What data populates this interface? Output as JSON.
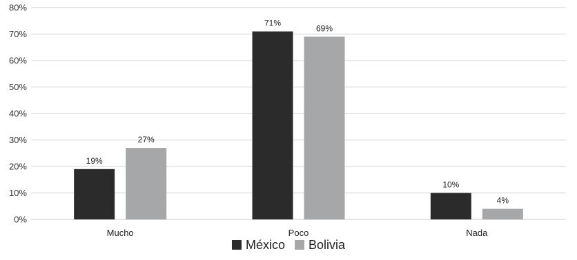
{
  "chart_data": {
    "type": "bar",
    "title": "",
    "xlabel": "",
    "ylabel": "",
    "categories": [
      "Mucho",
      "Poco",
      "Nada"
    ],
    "series": [
      {
        "name": "México",
        "values": [
          19,
          71,
          10
        ],
        "labels": [
          "19%",
          "71%",
          "10%"
        ],
        "color": "#2b2b2b"
      },
      {
        "name": "Bolivia",
        "values": [
          27,
          69,
          4
        ],
        "labels": [
          "27%",
          "69%",
          "4%"
        ],
        "color": "#a6a7a9"
      }
    ],
    "ylim": [
      0,
      80
    ],
    "yticks": [
      0,
      10,
      20,
      30,
      40,
      50,
      60,
      70,
      80
    ],
    "ytick_labels": [
      "0%",
      "10%",
      "20%",
      "30%",
      "40%",
      "50%",
      "60%",
      "70%",
      "80%"
    ],
    "grid": true,
    "legend_position": "bottom-center",
    "gridline_color": "#d0d0d0",
    "axis_color": "#c8c8c8"
  }
}
